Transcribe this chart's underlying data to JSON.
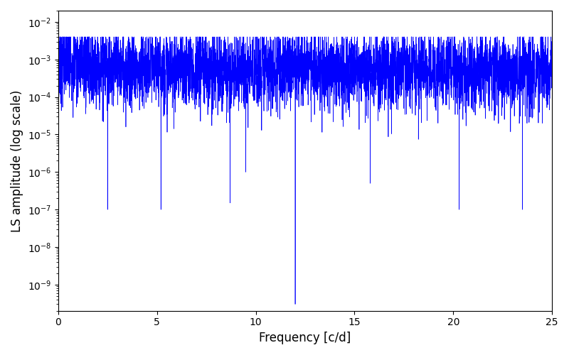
{
  "xlabel": "Frequency [c/d]",
  "ylabel": "LS amplitude (log scale)",
  "xlim": [
    0,
    25
  ],
  "ylim_log": [
    2e-10,
    0.02
  ],
  "line_color": "#0000ff",
  "line_width": 0.5,
  "background_color": "#ffffff",
  "figsize": [
    8.0,
    5.0
  ],
  "dpi": 100,
  "freq_max": 25.0,
  "n_points": 5000,
  "seed": 7
}
